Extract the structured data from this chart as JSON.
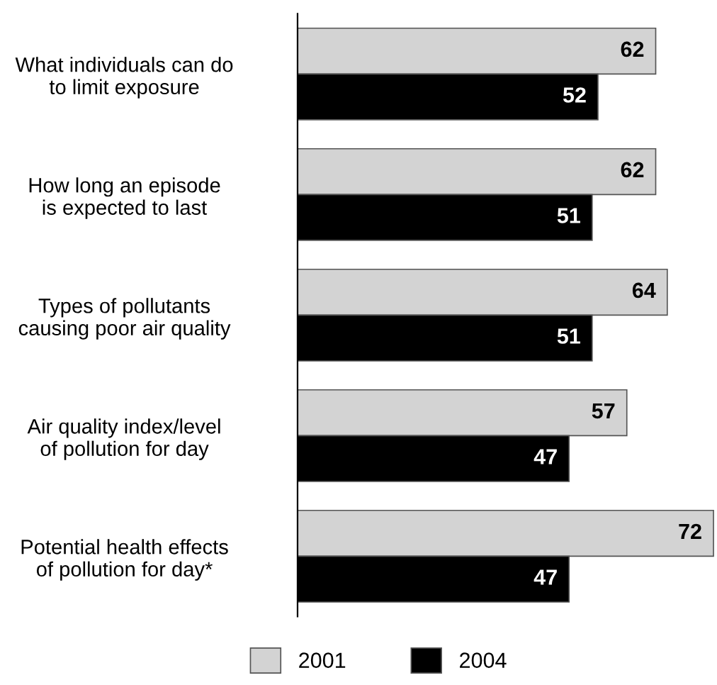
{
  "chart_data": {
    "type": "bar",
    "orientation": "horizontal",
    "categories": [
      "What individuals can do\nto limit exposure",
      "How long an episode\nis expected to last",
      "Types of pollutants\ncausing poor air quality",
      "Air quality index/level\nof pollution for day",
      "Potential health effects\nof pollution for day*"
    ],
    "series": [
      {
        "name": "2001",
        "color": "#d3d3d3",
        "values": [
          62,
          62,
          64,
          57,
          72
        ]
      },
      {
        "name": "2004",
        "color": "#000000",
        "values": [
          52,
          51,
          51,
          47,
          47
        ]
      }
    ],
    "data_labels": true,
    "legend": "bottom",
    "grid": false
  }
}
